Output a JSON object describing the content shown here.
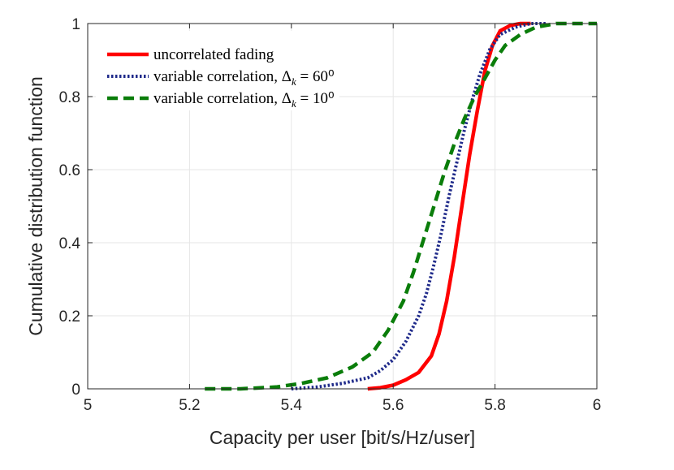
{
  "chart_data": {
    "type": "line",
    "title": "",
    "xlabel": "Capacity per user [bit/s/Hz/user]",
    "ylabel": "Cumulative distribution function",
    "xlim": [
      5,
      6
    ],
    "ylim": [
      0,
      1
    ],
    "xticks": [
      5,
      5.2,
      5.4,
      5.6,
      5.8,
      6
    ],
    "xtick_labels": [
      "5",
      "5.2",
      "5.4",
      "5.6",
      "5.8",
      "6"
    ],
    "yticks": [
      0,
      0.2,
      0.4,
      0.6,
      0.8,
      1
    ],
    "ytick_labels": [
      "0",
      "0.2",
      "0.4",
      "0.6",
      "0.8",
      "1"
    ],
    "grid": true,
    "legend_position": "top-left",
    "series": [
      {
        "name": "uncorrelated fading",
        "legend_prefix": "uncorrelated fading",
        "legend_sub": "",
        "legend_suffix": "",
        "color": "#ff0000",
        "style": "solid",
        "x": [
          5.55,
          5.575,
          5.6,
          5.625,
          5.65,
          5.675,
          5.69,
          5.705,
          5.72,
          5.735,
          5.75,
          5.765,
          5.78,
          5.795,
          5.81,
          5.83,
          5.85,
          5.87
        ],
        "y": [
          0.0,
          0.003,
          0.01,
          0.025,
          0.045,
          0.09,
          0.15,
          0.24,
          0.36,
          0.5,
          0.64,
          0.76,
          0.87,
          0.94,
          0.98,
          0.995,
          1.0,
          1.0
        ]
      },
      {
        "name": "variable correlation, Δk = 60⁰",
        "legend_prefix": "variable correlation, Δ",
        "legend_sub": "k",
        "legend_suffix": " = 60⁰",
        "color": "#1f2a8a",
        "style": "dotted",
        "x": [
          5.4,
          5.45,
          5.5,
          5.55,
          5.575,
          5.6,
          5.625,
          5.65,
          5.665,
          5.68,
          5.695,
          5.71,
          5.725,
          5.74,
          5.755,
          5.77,
          5.79,
          5.81,
          5.84,
          5.87,
          5.9
        ],
        "y": [
          0.0,
          0.005,
          0.015,
          0.03,
          0.05,
          0.08,
          0.13,
          0.2,
          0.26,
          0.34,
          0.43,
          0.53,
          0.62,
          0.71,
          0.79,
          0.86,
          0.93,
          0.97,
          0.99,
          1.0,
          1.0
        ]
      },
      {
        "name": "variable correlation, Δk = 10⁰",
        "legend_prefix": "variable correlation, Δ",
        "legend_sub": "k",
        "legend_suffix": " = 10⁰",
        "color": "#0a7d0a",
        "style": "dashed",
        "x": [
          5.23,
          5.3,
          5.37,
          5.42,
          5.47,
          5.52,
          5.56,
          5.59,
          5.62,
          5.64,
          5.66,
          5.68,
          5.7,
          5.72,
          5.74,
          5.76,
          5.78,
          5.8,
          5.82,
          5.85,
          5.88,
          5.92,
          6.0
        ],
        "y": [
          0.0,
          0.0,
          0.005,
          0.015,
          0.03,
          0.06,
          0.1,
          0.16,
          0.24,
          0.32,
          0.41,
          0.5,
          0.59,
          0.67,
          0.74,
          0.8,
          0.85,
          0.9,
          0.94,
          0.97,
          0.99,
          1.0,
          1.0
        ]
      }
    ]
  }
}
